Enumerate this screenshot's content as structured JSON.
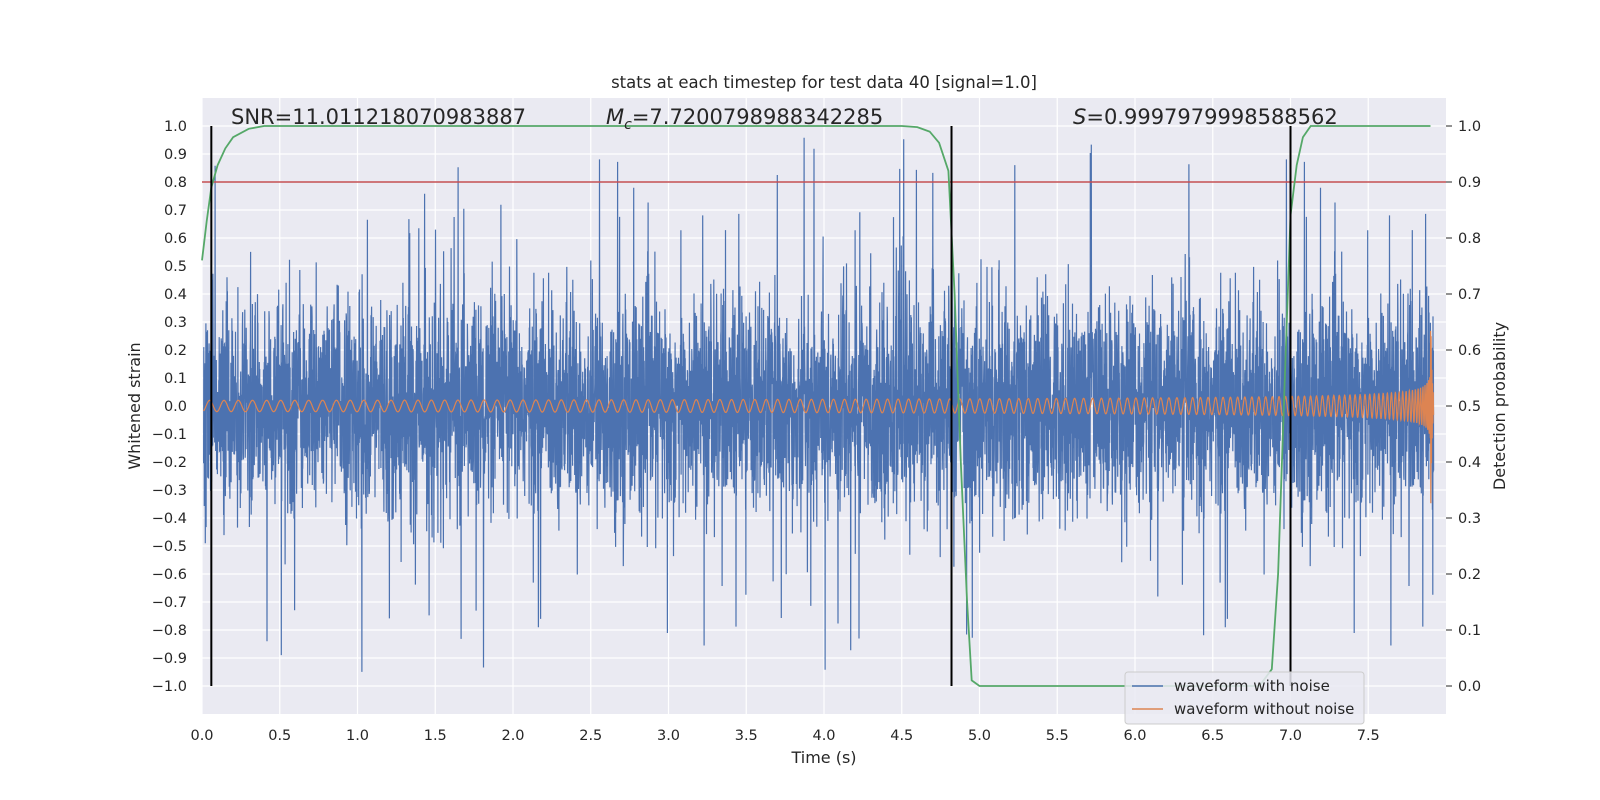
{
  "chart_data": {
    "type": "line",
    "title": "stats at each timestep for test data 40 [signal=1.0]",
    "xlabel": "Time (s)",
    "ylabel": "Whitened strain",
    "y2label": "Detection probability",
    "xlim": [
      0.0,
      8.0
    ],
    "ylim": [
      -1.1,
      1.1
    ],
    "y2lim": [
      -0.05,
      1.05
    ],
    "x_ticks": [
      0.0,
      0.5,
      1.0,
      1.5,
      2.0,
      2.5,
      3.0,
      3.5,
      4.0,
      4.5,
      5.0,
      5.5,
      6.0,
      6.5,
      7.0,
      7.5
    ],
    "x_tick_labels": [
      "0.0",
      "0.5",
      "1.0",
      "1.5",
      "2.0",
      "2.5",
      "3.0",
      "3.5",
      "4.0",
      "4.5",
      "5.0",
      "5.5",
      "6.0",
      "6.5",
      "7.0",
      "7.5"
    ],
    "y_ticks": [
      1.0,
      0.9,
      0.8,
      0.7,
      0.6,
      0.5,
      0.4,
      0.3,
      0.2,
      0.1,
      0.0,
      -0.1,
      -0.2,
      -0.3,
      -0.4,
      -0.5,
      -0.6,
      -0.7,
      -0.8,
      -0.9,
      -1.0
    ],
    "y_tick_labels": [
      "1.0",
      "0.9",
      "0.8",
      "0.7",
      "0.6",
      "0.5",
      "0.4",
      "0.3",
      "0.2",
      "0.1",
      "0.0",
      "−0.1",
      "−0.2",
      "−0.3",
      "−0.4",
      "−0.5",
      "−0.6",
      "−0.7",
      "−0.8",
      "−0.9",
      "−1.0"
    ],
    "y2_ticks": [
      1.0,
      0.9,
      0.8,
      0.7,
      0.6,
      0.5,
      0.4,
      0.3,
      0.2,
      0.1,
      0.0
    ],
    "y2_tick_labels": [
      "1.0",
      "0.9",
      "0.8",
      "0.7",
      "0.6",
      "0.5",
      "0.4",
      "0.3",
      "0.2",
      "0.1",
      "0.0"
    ],
    "grid": true,
    "annotations": {
      "snr": "SNR=11.011218070983887",
      "mc_symbol": "M",
      "mc_sub": "c",
      "mc_value": "=7.7200798988342285",
      "s_symbol": "S",
      "s_value": "=0.9997979998588562"
    },
    "vlines_x": [
      0.06,
      4.82,
      7.0
    ],
    "threshold_y2": 0.9,
    "series": [
      {
        "name": "waveform with noise",
        "color": "#4c72b0",
        "description": "whitened noisy strain, dense noise within roughly -0.5 to 0.55 with spikes to about ±1.0"
      },
      {
        "name": "waveform without noise",
        "color": "#dd8452",
        "description": "chirp signal, amplitude growing from about 0.02 to about 0.48 near t=7.9 s, then ringdown",
        "peak_time": 7.9,
        "peak_amplitude": 0.48
      },
      {
        "name": "",
        "color": "#55a868",
        "axis": "y2",
        "x": [
          0.0,
          0.03,
          0.06,
          0.1,
          0.15,
          0.2,
          0.3,
          0.4,
          0.6,
          1.0,
          2.0,
          3.0,
          4.0,
          4.5,
          4.6,
          4.68,
          4.74,
          4.8,
          4.84,
          4.88,
          4.92,
          4.95,
          5.0,
          5.5,
          6.0,
          6.5,
          6.8,
          6.88,
          6.92,
          6.97,
          7.0,
          7.04,
          7.08,
          7.13,
          7.2,
          7.5,
          7.9
        ],
        "values": [
          0.76,
          0.83,
          0.89,
          0.93,
          0.96,
          0.98,
          0.995,
          1.0,
          1.0,
          1.0,
          1.0,
          1.0,
          1.0,
          1.0,
          0.998,
          0.99,
          0.97,
          0.92,
          0.7,
          0.4,
          0.15,
          0.01,
          0.0,
          0.0,
          0.0,
          0.0,
          0.0,
          0.03,
          0.2,
          0.6,
          0.84,
          0.93,
          0.98,
          1.0,
          1.0,
          1.0,
          1.0
        ]
      }
    ],
    "threshold_color": "#c44e52",
    "vline_color": "#000000",
    "legend_location": "lower-right",
    "legend": [
      "waveform with noise",
      "waveform without noise"
    ]
  }
}
